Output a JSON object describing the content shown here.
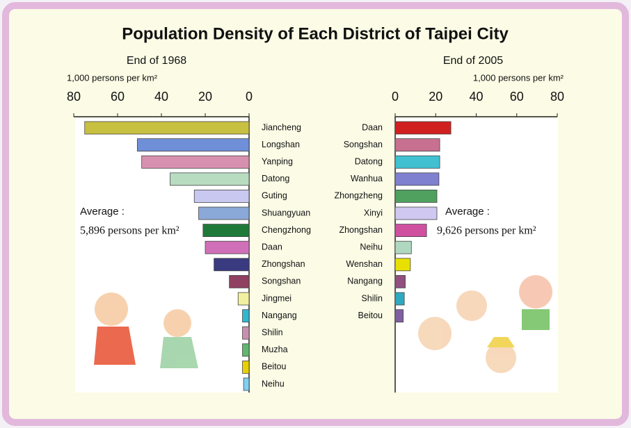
{
  "title": "Population Density of Each District of Taipei City",
  "chart_data": [
    {
      "type": "barh",
      "subtitle": "End of 1968",
      "axis_label": "1,000 persons per km²",
      "x_inverted": true,
      "xlim": [
        0,
        80
      ],
      "xticks": [
        0,
        20,
        40,
        60,
        80
      ],
      "categories": [
        "Jiancheng",
        "Longshan",
        "Yanping",
        "Datong",
        "Guting",
        "Shuangyuan",
        "Chengzhong",
        "Daan",
        "Zhongshan",
        "Songshan",
        "Jingmei",
        "Nangang",
        "Shilin",
        "Muzha",
        "Beitou",
        "Neihu"
      ],
      "values": [
        75,
        51,
        49,
        36,
        25,
        23,
        21,
        20,
        16,
        9,
        5,
        3,
        3,
        3,
        3,
        2.5
      ],
      "colors": [
        "#c8c040",
        "#6f8fd8",
        "#d890b0",
        "#b8dcc0",
        "#c8c8f0",
        "#8aa8d8",
        "#1f7a3a",
        "#d070b8",
        "#3a3a80",
        "#904060",
        "#f0f0a0",
        "#30b8d0",
        "#c890b0",
        "#60b870",
        "#e8d000",
        "#80d0f0"
      ],
      "annotation_title": "Average :",
      "annotation": "5,896 persons per km²"
    },
    {
      "type": "barh",
      "subtitle": "End of 2005",
      "axis_label": "1,000 persons per km²",
      "x_inverted": false,
      "xlim": [
        0,
        80
      ],
      "xticks": [
        0,
        20,
        40,
        60,
        80
      ],
      "categories": [
        "Daan",
        "Songshan",
        "Datong",
        "Wanhua",
        "Zhongzheng",
        "Xinyi",
        "Zhongshan",
        "Neihu",
        "Wenshan",
        "Nangang",
        "Shilin",
        "Beitou"
      ],
      "values": [
        27.5,
        22,
        22,
        21.6,
        20.6,
        20.6,
        15.5,
        8,
        7.5,
        5,
        4.5,
        4
      ],
      "colors": [
        "#d02020",
        "#c87090",
        "#40c0d0",
        "#8080d0",
        "#50a060",
        "#d0c8f0",
        "#d050a0",
        "#b0d8c0",
        "#e8e000",
        "#905080",
        "#30a8c0",
        "#8060a0"
      ],
      "annotation_title": "Average :",
      "annotation": "9,626 persons per km²"
    }
  ]
}
